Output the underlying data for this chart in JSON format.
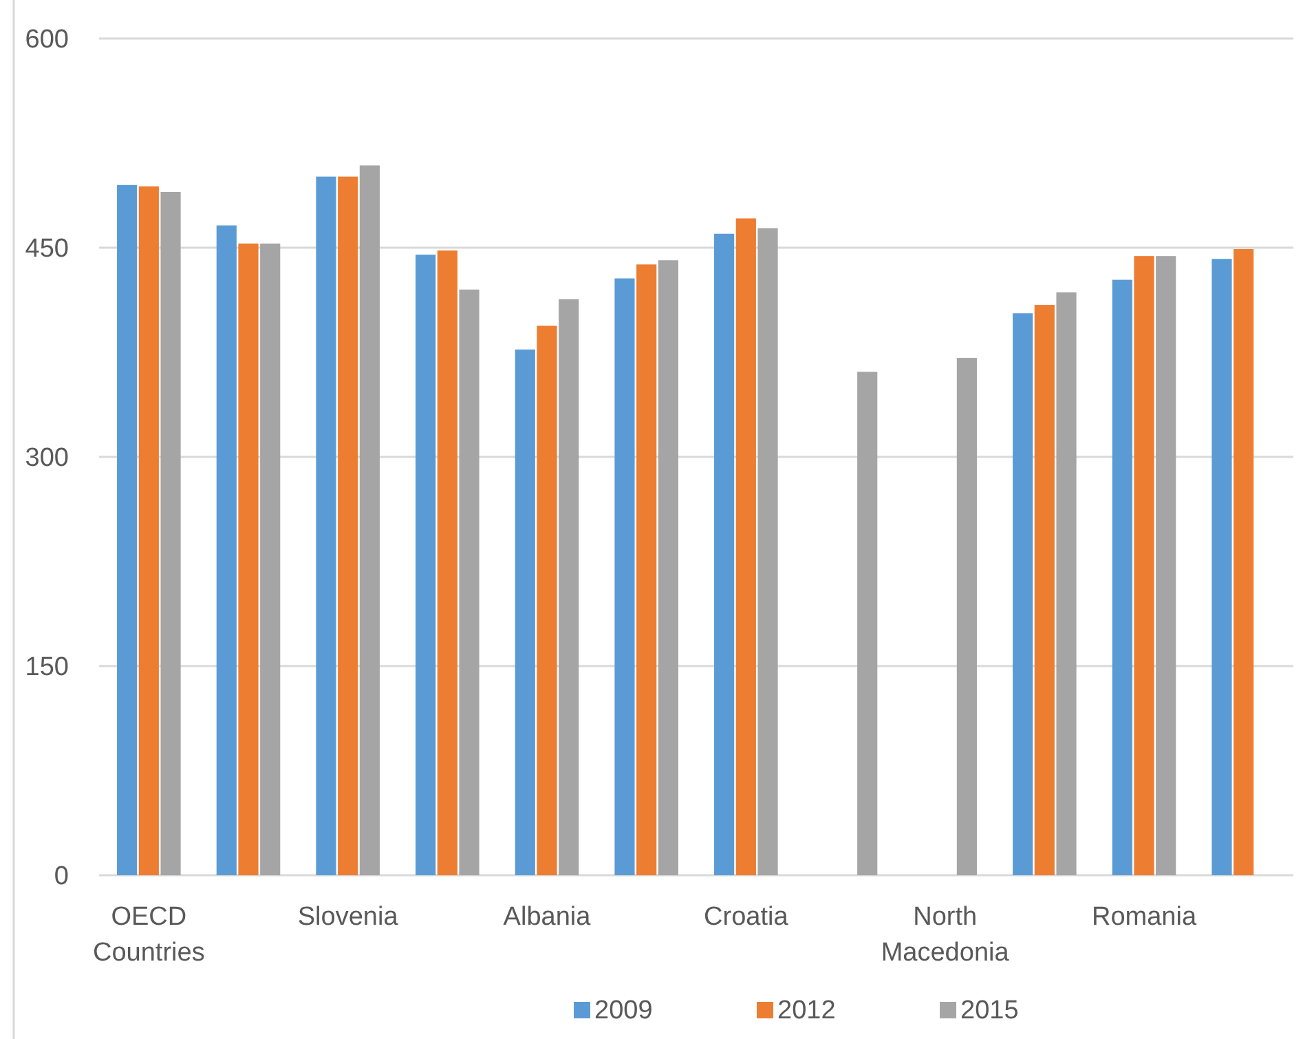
{
  "chart_data": {
    "type": "bar",
    "categories": [
      "OECD Countries",
      null,
      "Slovenia",
      null,
      "Albania",
      null,
      "Croatia",
      null,
      "North Macedonia",
      null,
      "Romania",
      null
    ],
    "series": [
      {
        "name": "2009",
        "color": "#5b9bd5",
        "values": [
          495,
          466,
          501,
          445,
          377,
          428,
          460,
          null,
          null,
          403,
          427,
          442
        ]
      },
      {
        "name": "2012",
        "color": "#ed7d31",
        "values": [
          494,
          453,
          501,
          448,
          394,
          438,
          471,
          null,
          null,
          409,
          444,
          449
        ]
      },
      {
        "name": "2015",
        "color": "#a5a5a5",
        "values": [
          490,
          453,
          509,
          420,
          413,
          441,
          464,
          361,
          371,
          418,
          444,
          null
        ]
      }
    ],
    "ylim": [
      0,
      600
    ],
    "yticks": [
      0,
      150,
      300,
      450,
      600
    ],
    "grid": "y",
    "legend": "bottom"
  }
}
